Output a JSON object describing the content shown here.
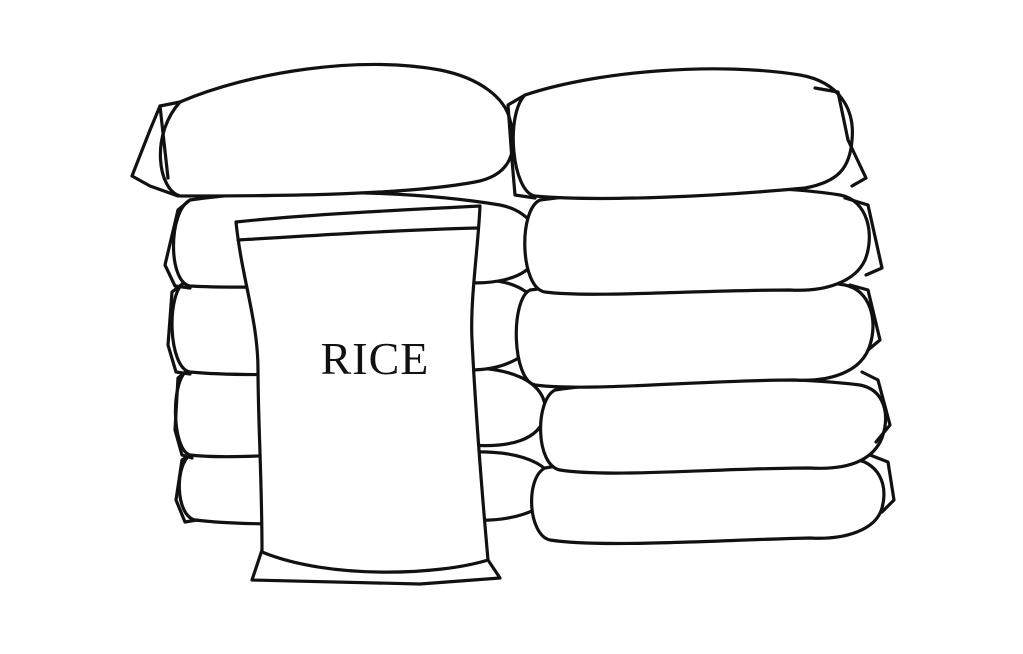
{
  "illustration": {
    "front_bag": {
      "label": "RICE"
    },
    "colors": {
      "ink": "#111111",
      "background": "#ffffff"
    }
  }
}
